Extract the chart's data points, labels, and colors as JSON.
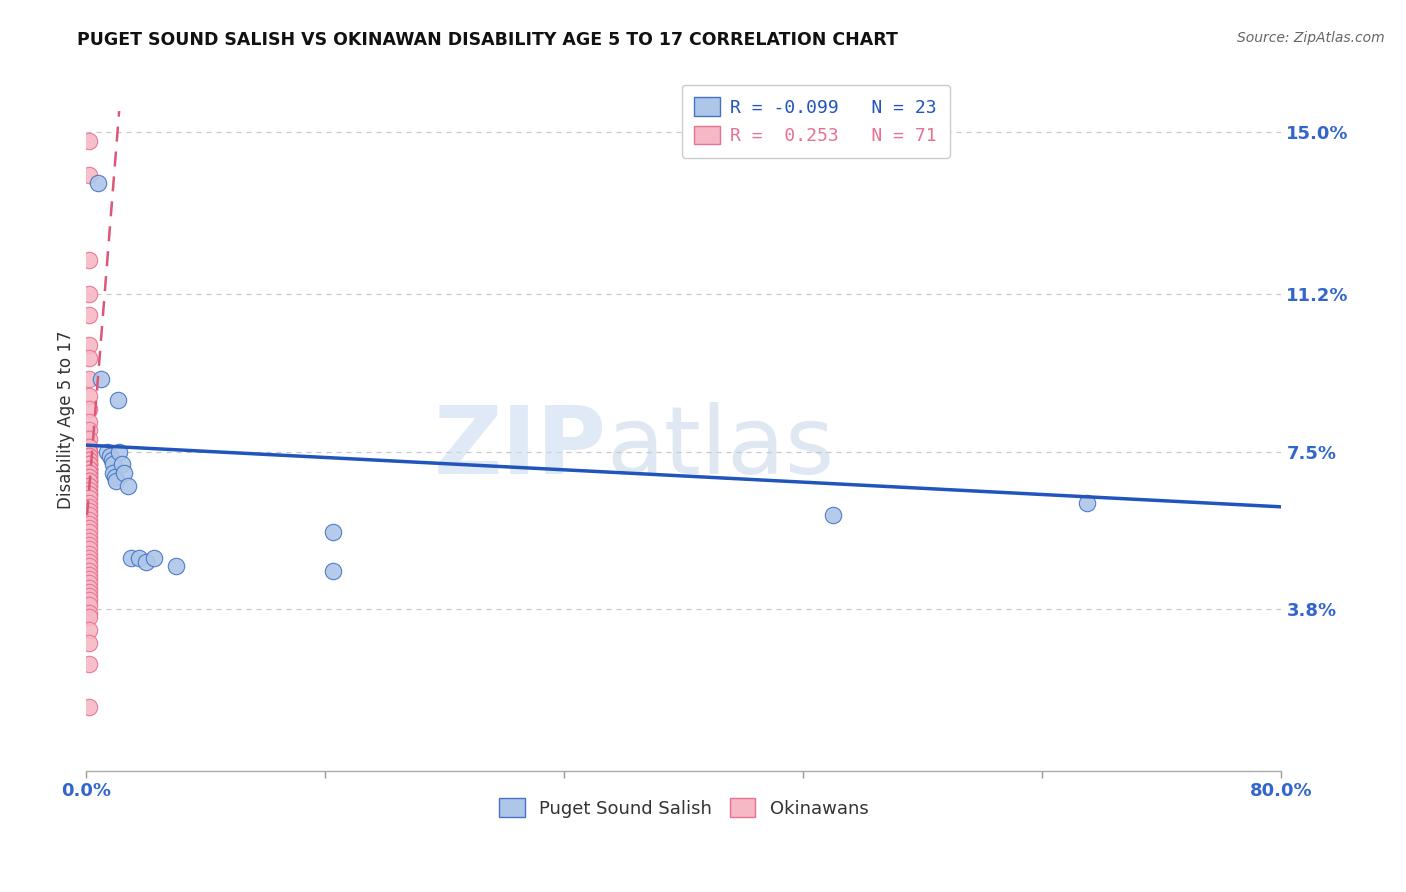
{
  "title": "PUGET SOUND SALISH VS OKINAWAN DISABILITY AGE 5 TO 17 CORRELATION CHART",
  "source": "Source: ZipAtlas.com",
  "ylabel": "Disability Age 5 to 17",
  "ytick_labels": [
    "3.8%",
    "7.5%",
    "11.2%",
    "15.0%"
  ],
  "ytick_values": [
    0.038,
    0.075,
    0.112,
    0.15
  ],
  "xlim": [
    0.0,
    0.8
  ],
  "ylim": [
    0.0,
    0.165
  ],
  "legend_blue_r": "-0.099",
  "legend_blue_n": "23",
  "legend_pink_r": "0.253",
  "legend_pink_n": "71",
  "blue_fill": "#aec6e8",
  "pink_fill": "#f5b8c4",
  "blue_edge": "#4472c4",
  "pink_edge": "#e87090",
  "blue_line_color": "#2255bb",
  "pink_line_color": "#dd5577",
  "watermark_zip": "ZIP",
  "watermark_atlas": "atlas",
  "blue_scatter_x": [
    0.008,
    0.01,
    0.014,
    0.016,
    0.017,
    0.018,
    0.018,
    0.019,
    0.02,
    0.021,
    0.022,
    0.024,
    0.025,
    0.028,
    0.03,
    0.035,
    0.04,
    0.045,
    0.06,
    0.165,
    0.5,
    0.67,
    0.165
  ],
  "blue_scatter_y": [
    0.138,
    0.092,
    0.075,
    0.074,
    0.073,
    0.072,
    0.07,
    0.069,
    0.068,
    0.087,
    0.075,
    0.072,
    0.07,
    0.067,
    0.05,
    0.05,
    0.049,
    0.05,
    0.048,
    0.056,
    0.06,
    0.063,
    0.047
  ],
  "pink_scatter_x": [
    0.002,
    0.002,
    0.002,
    0.002,
    0.002,
    0.002,
    0.002,
    0.002,
    0.002,
    0.002,
    0.002,
    0.002,
    0.002,
    0.002,
    0.002,
    0.002,
    0.002,
    0.002,
    0.002,
    0.002,
    0.002,
    0.002,
    0.002,
    0.002,
    0.002,
    0.002,
    0.002,
    0.002,
    0.002,
    0.002,
    0.002,
    0.002,
    0.002,
    0.002,
    0.002,
    0.002,
    0.002,
    0.002,
    0.002,
    0.002,
    0.002,
    0.002,
    0.002,
    0.002,
    0.002,
    0.002,
    0.002,
    0.002,
    0.002,
    0.002,
    0.002,
    0.002,
    0.002,
    0.002,
    0.002,
    0.002,
    0.002,
    0.002,
    0.002,
    0.002,
    0.002,
    0.002,
    0.002,
    0.002,
    0.002,
    0.002,
    0.002,
    0.002,
    0.002,
    0.002,
    0.002
  ],
  "pink_scatter_y": [
    0.148,
    0.14,
    0.12,
    0.112,
    0.107,
    0.1,
    0.097,
    0.092,
    0.088,
    0.085,
    0.082,
    0.08,
    0.078,
    0.076,
    0.075,
    0.075,
    0.074,
    0.074,
    0.073,
    0.073,
    0.072,
    0.072,
    0.072,
    0.071,
    0.071,
    0.071,
    0.07,
    0.07,
    0.07,
    0.069,
    0.069,
    0.068,
    0.068,
    0.068,
    0.067,
    0.067,
    0.066,
    0.065,
    0.065,
    0.064,
    0.063,
    0.062,
    0.061,
    0.06,
    0.059,
    0.058,
    0.057,
    0.056,
    0.055,
    0.054,
    0.053,
    0.052,
    0.051,
    0.05,
    0.049,
    0.048,
    0.047,
    0.046,
    0.045,
    0.044,
    0.043,
    0.042,
    0.041,
    0.04,
    0.039,
    0.037,
    0.036,
    0.033,
    0.03,
    0.025,
    0.015
  ],
  "blue_line_x": [
    0.0,
    0.8
  ],
  "blue_line_y": [
    0.0765,
    0.062
  ],
  "pink_line_x": [
    0.0005,
    0.022
  ],
  "pink_line_y": [
    0.06,
    0.155
  ]
}
